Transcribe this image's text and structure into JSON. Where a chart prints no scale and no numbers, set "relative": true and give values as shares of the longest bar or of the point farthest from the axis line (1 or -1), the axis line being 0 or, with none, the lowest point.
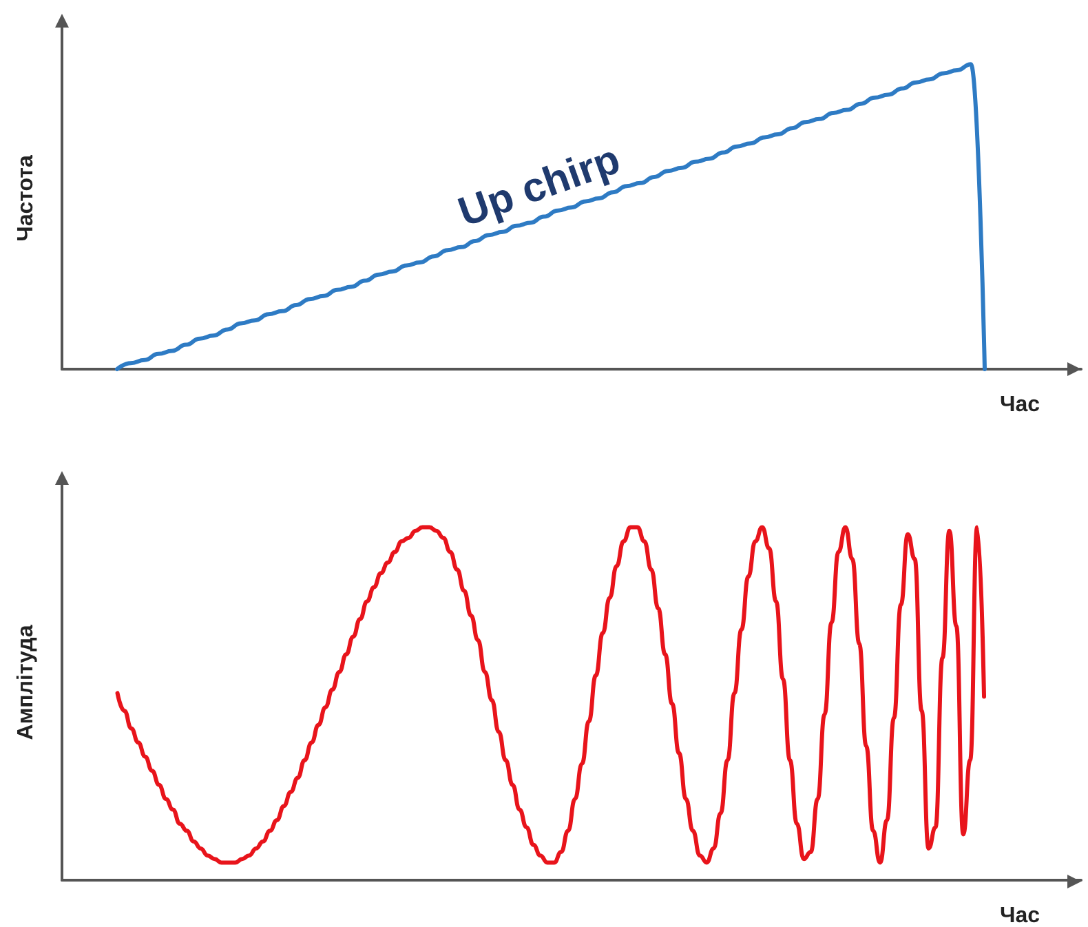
{
  "chart_data": [
    {
      "type": "line",
      "xlabel": "Час",
      "ylabel": "Частота",
      "relative": true,
      "annotations": [
        "Up chirp"
      ],
      "categories": [
        null,
        null,
        null,
        null,
        null,
        null,
        null,
        null,
        null,
        null,
        null,
        null,
        null,
        null,
        null,
        null,
        null,
        null,
        null,
        null,
        null,
        null,
        null,
        null,
        null,
        null,
        null,
        null,
        null,
        null,
        null,
        null,
        null,
        null,
        null,
        null,
        null,
        null,
        null,
        null,
        null,
        null,
        null,
        null,
        null,
        null,
        null,
        null,
        null,
        null,
        null,
        null,
        null,
        null,
        null,
        null,
        null,
        null,
        null,
        null,
        null,
        null,
        null,
        null,
        null,
        null,
        null,
        null,
        null,
        null,
        null,
        null,
        null,
        null,
        null
      ],
      "series": [
        {
          "color": "#2e7bc4",
          "values": [
            null,
            null,
            null,
            null,
            0,
            0.02,
            0.03,
            0.05,
            0.06,
            0.08,
            0.1,
            0.11,
            0.13,
            0.15,
            0.16,
            0.18,
            0.19,
            0.21,
            0.23,
            0.24,
            0.26,
            0.27,
            0.29,
            0.31,
            0.32,
            0.34,
            0.35,
            0.37,
            0.39,
            0.4,
            0.42,
            0.44,
            0.45,
            0.47,
            0.48,
            0.5,
            0.52,
            0.53,
            0.55,
            0.56,
            0.58,
            0.6,
            0.61,
            0.63,
            0.65,
            0.66,
            0.68,
            0.69,
            0.71,
            0.73,
            0.74,
            0.76,
            0.77,
            0.79,
            0.81,
            0.82,
            0.84,
            0.85,
            0.87,
            0.89,
            0.9,
            0.92,
            0.94,
            0.95,
            0.97,
            0.98,
            1,
            0,
            null,
            null,
            null,
            null,
            null,
            null,
            null
          ]
        }
      ]
    },
    {
      "type": "line",
      "xlabel": "Час",
      "ylabel": "Амплітуда",
      "relative": true,
      "categories": [
        null,
        null,
        null,
        null,
        null,
        null,
        null,
        null,
        null,
        null,
        null,
        null,
        null,
        null,
        null,
        null,
        null,
        null,
        null,
        null,
        null,
        null,
        null,
        null,
        null,
        null,
        null,
        null,
        null,
        null,
        null,
        null,
        null,
        null,
        null,
        null,
        null,
        null,
        null,
        null,
        null,
        null,
        null,
        null,
        null,
        null,
        null,
        null,
        null,
        null,
        null,
        null,
        null,
        null,
        null,
        null,
        null,
        null,
        null,
        null,
        null,
        null,
        null,
        null,
        null,
        null,
        null,
        null,
        null,
        null,
        null,
        null,
        null,
        null,
        null,
        null,
        null,
        null,
        null,
        null,
        null,
        null,
        null,
        null,
        null,
        null,
        null,
        null,
        null,
        null,
        null,
        null,
        null,
        null,
        null,
        null,
        null,
        null,
        null,
        null,
        null,
        null,
        null,
        null,
        null,
        null,
        null,
        null,
        null,
        null,
        null,
        null,
        null,
        null,
        null,
        null,
        null,
        null,
        null,
        null,
        null,
        null,
        null,
        null,
        null,
        null,
        null,
        null,
        null,
        null,
        null,
        null,
        null,
        null,
        null,
        null,
        null,
        null,
        null,
        null,
        null,
        null,
        null,
        null,
        null,
        null,
        null,
        null
      ],
      "series": [
        {
          "color": "#e8141b",
          "values": [
            null,
            null,
            null,
            null,
            null,
            null,
            null,
            null,
            0.53,
            0.48,
            0.43,
            0.39,
            0.35,
            0.31,
            0.27,
            0.23,
            0.2,
            0.16,
            0.14,
            0.11,
            0.09,
            0.07,
            0.06,
            0.05,
            0.05,
            0.05,
            0.06,
            0.07,
            0.09,
            0.11,
            0.14,
            0.17,
            0.21,
            0.25,
            0.29,
            0.34,
            0.39,
            0.44,
            0.49,
            0.54,
            0.59,
            0.64,
            0.69,
            0.74,
            0.79,
            0.83,
            0.87,
            0.9,
            0.93,
            0.96,
            0.97,
            0.99,
            1,
            1,
            0.99,
            0.97,
            0.93,
            0.88,
            0.82,
            0.75,
            0.68,
            0.59,
            0.51,
            0.42,
            0.34,
            0.27,
            0.2,
            0.15,
            0.1,
            0.07,
            0.05,
            0.05,
            0.08,
            0.14,
            0.23,
            0.33,
            0.45,
            0.58,
            0.7,
            0.8,
            0.89,
            0.96,
            1,
            1,
            0.96,
            0.88,
            0.77,
            0.64,
            0.5,
            0.36,
            0.23,
            0.14,
            0.07,
            0.05,
            0.09,
            0.19,
            0.34,
            0.53,
            0.71,
            0.86,
            0.96,
            1,
            0.94,
            0.79,
            0.57,
            0.34,
            0.16,
            0.06,
            0.08,
            0.23,
            0.47,
            0.73,
            0.93,
            1,
            0.91,
            0.67,
            0.38,
            0.14,
            0.05,
            0.17,
            0.46,
            0.78,
            0.98,
            0.91,
            0.48,
            0.09,
            0.15,
            0.63,
            0.99,
            0.72,
            0.13,
            0.34,
            1,
            0.52,
            null,
            null,
            null,
            null,
            null,
            null,
            null,
            null,
            null,
            null,
            null,
            null,
            null,
            null
          ]
        }
      ]
    }
  ]
}
